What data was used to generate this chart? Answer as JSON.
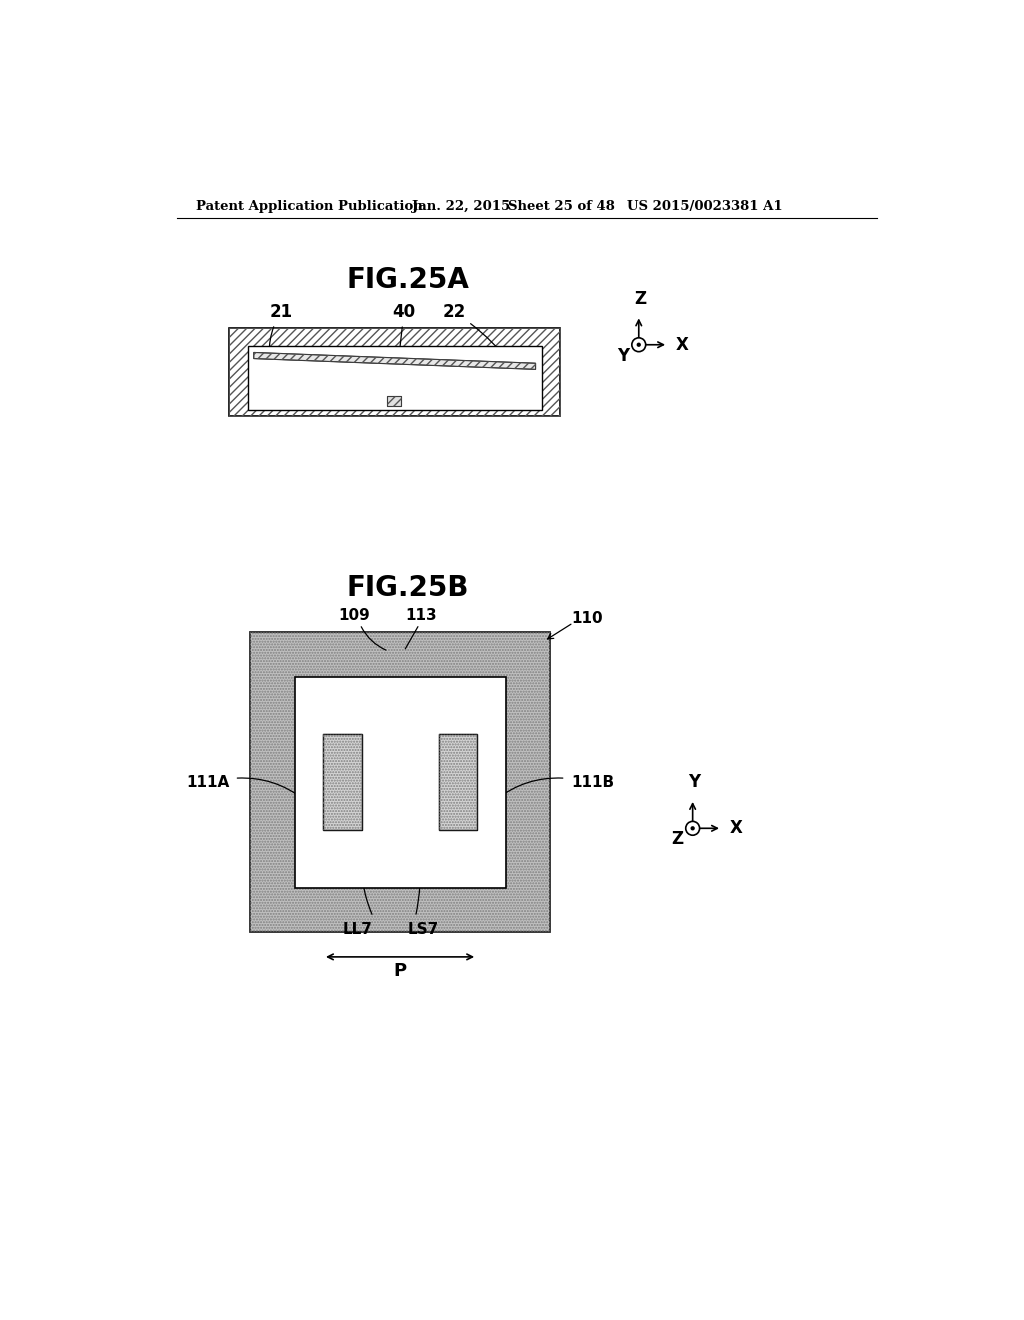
{
  "bg_color": "#ffffff",
  "header_text": "Patent Application Publication",
  "header_date": "Jan. 22, 2015",
  "header_sheet": "Sheet 25 of 48",
  "header_patent": "US 2015/0023381 A1",
  "fig25a_title": "FIG.25A",
  "fig25b_title": "FIG.25B",
  "outer_gray": "#b8b8b8",
  "inner_white": "#ffffff",
  "rect_dot_fill": "#cccccc",
  "hatch_fill": "#e8e8e8"
}
